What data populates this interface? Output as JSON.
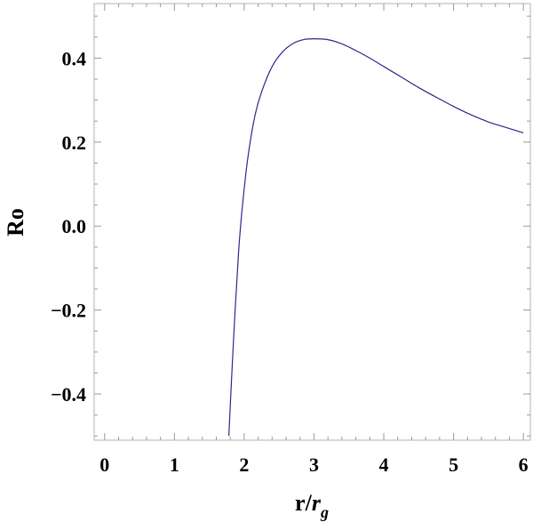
{
  "chart_data": {
    "type": "line",
    "title": "",
    "xlabel": {
      "main": "r/",
      "italic": "r",
      "subscript": "g"
    },
    "ylabel": "Ro",
    "xlim": [
      -0.15,
      6.1
    ],
    "ylim": [
      -0.51,
      0.53
    ],
    "grid": false,
    "legend": "none",
    "x_ticks": [
      {
        "value": 0,
        "label": "0"
      },
      {
        "value": 1,
        "label": "1"
      },
      {
        "value": 2,
        "label": "2"
      },
      {
        "value": 3,
        "label": "3"
      },
      {
        "value": 4,
        "label": "4"
      },
      {
        "value": 5,
        "label": "5"
      },
      {
        "value": 6,
        "label": "6"
      }
    ],
    "y_ticks": [
      {
        "value": -0.4,
        "label": "−0.4"
      },
      {
        "value": -0.2,
        "label": "−0.2"
      },
      {
        "value": 0.0,
        "label": "0.0"
      },
      {
        "value": 0.2,
        "label": "0.2"
      },
      {
        "value": 0.4,
        "label": "0.4"
      }
    ],
    "x_minor_step": 0.2,
    "y_minor_step": 0.05,
    "series": [
      {
        "color": "#2a2a8c",
        "x": [
          1.78,
          1.82,
          1.87,
          1.92,
          1.97,
          2.05,
          2.15,
          2.25,
          2.4,
          2.55,
          2.7,
          2.85,
          3.0,
          3.2,
          3.4,
          3.6,
          3.8,
          4.0,
          4.25,
          4.5,
          4.75,
          5.0,
          5.25,
          5.5,
          5.75,
          6.0
        ],
        "y": [
          -0.5,
          -0.36,
          -0.2,
          -0.06,
          0.04,
          0.16,
          0.26,
          0.32,
          0.38,
          0.415,
          0.435,
          0.444,
          0.446,
          0.444,
          0.434,
          0.418,
          0.4,
          0.38,
          0.355,
          0.33,
          0.307,
          0.285,
          0.265,
          0.248,
          0.235,
          0.222
        ]
      }
    ]
  }
}
